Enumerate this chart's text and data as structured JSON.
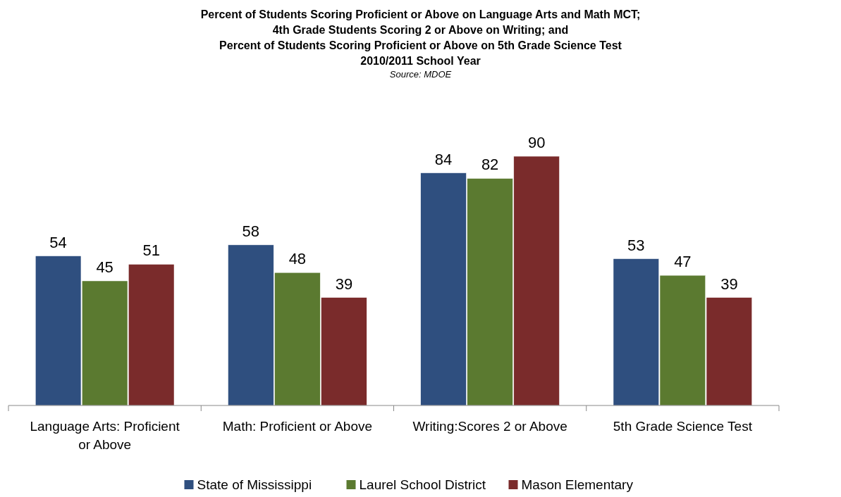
{
  "chart_data": {
    "type": "bar",
    "title": "Percent of Students Scoring Proficient or Above on Language Arts and Math MCT;\n4th Grade Students Scoring 2 or Above on Writing; and\nPercent of Students Scoring Proficient or Above on 5th Grade Science Test\n2010/2011 School Year",
    "annotations": [
      "Source: MDOE"
    ],
    "categories": [
      "Language Arts: Proficient or Above",
      "Math: Proficient or Above",
      "Writing:Scores 2 or Above",
      "5th Grade Science Test"
    ],
    "series": [
      {
        "name": "State of Mississippi",
        "color": "#2f4f7f",
        "values": [
          54,
          58,
          84,
          53
        ]
      },
      {
        "name": "Laurel School District",
        "color": "#5b7a30",
        "values": [
          45,
          48,
          82,
          47
        ]
      },
      {
        "name": "Mason Elementary",
        "color": "#7a2b2b",
        "values": [
          51,
          39,
          90,
          39
        ]
      }
    ],
    "data_labels": true,
    "legend": "bottom"
  }
}
